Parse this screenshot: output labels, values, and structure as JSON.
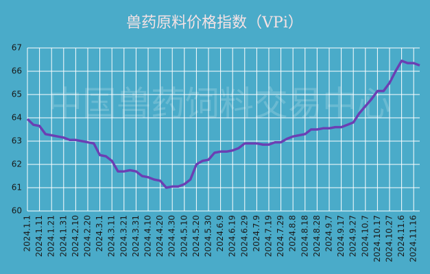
{
  "chart_data": {
    "type": "line",
    "title": "兽药原料价格指数（VPi）",
    "watermark": "中国兽药饲料交易中心",
    "categories": [
      "2024.1.1",
      null,
      "2024.1.11",
      null,
      "2024.1.21",
      null,
      "2024.1.31",
      null,
      "2024.2.10",
      null,
      "2024.2.20",
      null,
      "2024.3.1",
      null,
      "2024.3.11",
      null,
      "2024.3.21",
      null,
      "2024.3.31",
      null,
      "2024.4.10",
      null,
      "2024.4.20",
      null,
      "2024.4.30",
      null,
      "2024.5.10",
      null,
      "2024.5.20",
      null,
      "2024.5.30",
      null,
      "2024.6.9",
      null,
      "2024.6.19",
      null,
      "2024.6.29",
      null,
      "2024.7.9",
      null,
      "2024.7.19",
      null,
      "2024.7.29",
      null,
      "2024.8.8",
      null,
      "2024.8.18",
      null,
      "2024.8.28",
      null,
      "2024.9.7",
      null,
      "2024.9.17",
      null,
      "2024.9.27",
      null,
      "2024.10.7",
      null,
      "2024.10.17",
      null,
      "2024.10.27",
      null,
      "2024.11.6",
      null,
      "2024.11.16",
      null
    ],
    "values": [
      63.95,
      63.7,
      63.65,
      63.3,
      63.25,
      63.2,
      63.15,
      63.05,
      63.05,
      63.0,
      62.95,
      62.9,
      62.4,
      62.35,
      62.15,
      61.7,
      61.7,
      61.75,
      61.7,
      61.5,
      61.45,
      61.35,
      61.3,
      61.0,
      61.05,
      61.05,
      61.15,
      61.35,
      62.0,
      62.15,
      62.2,
      62.5,
      62.55,
      62.55,
      62.6,
      62.7,
      62.9,
      62.9,
      62.9,
      62.85,
      62.85,
      62.95,
      62.95,
      63.1,
      63.2,
      63.25,
      63.3,
      63.5,
      63.5,
      63.55,
      63.55,
      63.6,
      63.6,
      63.7,
      63.8,
      64.2,
      64.5,
      64.8,
      65.15,
      65.15,
      65.5,
      66.0,
      66.45,
      66.35,
      66.35,
      66.25
    ],
    "color": "#6b3fb3",
    "ylim": [
      60,
      67
    ],
    "yticks": [
      60,
      61,
      62,
      63,
      64,
      65,
      66,
      67
    ],
    "grid": true
  }
}
